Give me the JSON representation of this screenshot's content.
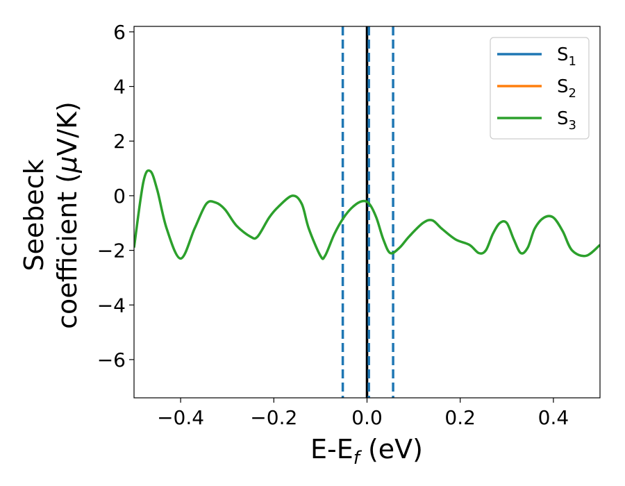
{
  "chart_data": {
    "type": "line",
    "title": "",
    "xlabel": {
      "main": "E-E",
      "sub": "f",
      "tail": " (eV)"
    },
    "ylabel": {
      "line1": "Seebeck",
      "line2": "coefficient  (",
      "mu": "μ",
      "line2_tail": "V/K)"
    },
    "xlim": [
      -0.5,
      0.5
    ],
    "ylim": [
      -7.4,
      6.2
    ],
    "x_ticks": [
      -0.4,
      -0.2,
      0.0,
      0.2,
      0.4
    ],
    "x_tick_labels": [
      "−0.4",
      "−0.2",
      "0.0",
      "0.2",
      "0.4"
    ],
    "y_ticks": [
      -6,
      -4,
      -2,
      0,
      2,
      4,
      6
    ],
    "y_tick_labels": [
      "−6",
      "−4",
      "−2",
      "0",
      "2",
      "4",
      "6"
    ],
    "grid": false,
    "legend_position": "top-right",
    "series": [
      {
        "name": "S",
        "sub": "1",
        "color": "#1f77b4",
        "x": [],
        "y": []
      },
      {
        "name": "S",
        "sub": "2",
        "color": "#ff7f0e",
        "x": [],
        "y": []
      },
      {
        "name": "S",
        "sub": "3",
        "color": "#2ca02c",
        "x": [
          -0.5,
          -0.48,
          -0.465,
          -0.45,
          -0.43,
          -0.4,
          -0.37,
          -0.345,
          -0.325,
          -0.305,
          -0.28,
          -0.25,
          -0.235,
          -0.21,
          -0.19,
          -0.16,
          -0.14,
          -0.125,
          -0.1,
          -0.09,
          -0.07,
          -0.05,
          -0.03,
          -0.01,
          0.005,
          0.02,
          0.035,
          0.05,
          0.07,
          0.09,
          0.12,
          0.14,
          0.16,
          0.19,
          0.22,
          0.24,
          0.255,
          0.27,
          0.285,
          0.3,
          0.315,
          0.33,
          0.345,
          0.36,
          0.38,
          0.4,
          0.42,
          0.44,
          0.47,
          0.5
        ],
        "y": [
          -1.9,
          0.5,
          0.9,
          0.2,
          -1.2,
          -2.3,
          -1.2,
          -0.3,
          -0.25,
          -0.5,
          -1.1,
          -1.5,
          -1.5,
          -0.8,
          -0.4,
          0.0,
          -0.3,
          -1.2,
          -2.2,
          -2.2,
          -1.4,
          -0.8,
          -0.4,
          -0.2,
          -0.3,
          -0.8,
          -1.6,
          -2.1,
          -1.9,
          -1.5,
          -1.0,
          -0.9,
          -1.2,
          -1.6,
          -1.8,
          -2.1,
          -2.0,
          -1.4,
          -1.0,
          -1.0,
          -1.6,
          -2.1,
          -1.9,
          -1.2,
          -0.8,
          -0.8,
          -1.3,
          -2.0,
          -2.2,
          -1.8
        ]
      }
    ],
    "vlines": [
      {
        "x": -0.052,
        "color": "#1f77b4",
        "style": "dashed"
      },
      {
        "x": 0.0,
        "color": "#000000",
        "style": "solid"
      },
      {
        "x": 0.004,
        "color": "#1f77b4",
        "style": "dashed"
      },
      {
        "x": 0.056,
        "color": "#1f77b4",
        "style": "dashed"
      }
    ]
  }
}
